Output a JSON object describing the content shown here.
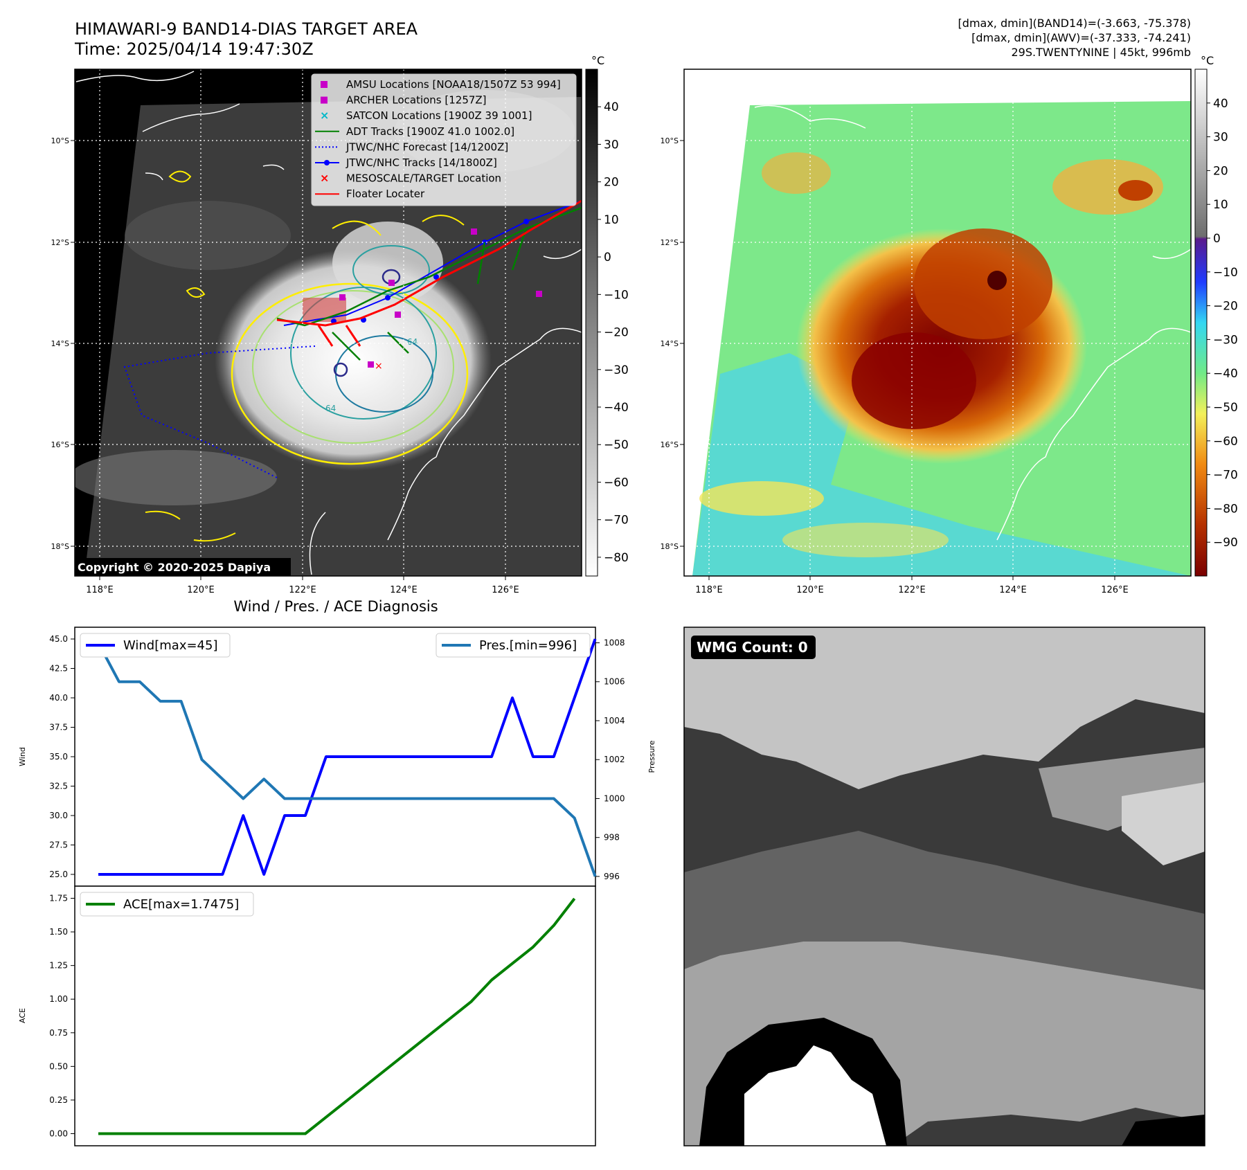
{
  "header": {
    "title_line1": "HIMAWARI-9 BAND14-DIAS TARGET AREA",
    "title_line2": "Time: 2025/04/14 19:47:30Z",
    "info_line1": "[dmax, dmin](BAND14)=(-3.663, -75.378)",
    "info_line2": "[dmax, dmin](AWV)=(-37.333, -74.241)",
    "info_line3": "29S.TWENTYNINE | 45kt, 996mb"
  },
  "map": {
    "lon_ticks": [
      "118°E",
      "120°E",
      "122°E",
      "124°E",
      "126°E"
    ],
    "lat_ticks": [
      "10°S",
      "12°S",
      "14°S",
      "16°S",
      "18°S"
    ],
    "copyright": "Copyright © 2020-2025 Dapiya",
    "contour_labels": [
      "64",
      "64"
    ],
    "legend": [
      {
        "label": "AMSU Locations [NOAA18/1507Z 53 994]",
        "kind": "square",
        "color": "#c800c8"
      },
      {
        "label": "ARCHER Locations [1257Z]",
        "kind": "square",
        "color": "#c800c8"
      },
      {
        "label": "SATCON Locations [1900Z 39 1001]",
        "kind": "x",
        "color": "#00b8c8"
      },
      {
        "label": "ADT Tracks [1900Z 41.0 1002.0]",
        "kind": "line",
        "color": "#008000"
      },
      {
        "label": "JTWC/NHC Forecast [14/1200Z]",
        "kind": "dotted",
        "color": "#0000ff"
      },
      {
        "label": "JTWC/NHC Tracks [14/1800Z]",
        "kind": "line-dot",
        "color": "#0000ff"
      },
      {
        "label": "MESOSCALE/TARGET Location",
        "kind": "x",
        "color": "#ff0000"
      },
      {
        "label": "Floater Locater",
        "kind": "line",
        "color": "#ff0000"
      }
    ]
  },
  "colorbar_gray": {
    "unit": "°C",
    "range": [
      -85,
      50
    ],
    "ticks": [
      40,
      30,
      20,
      10,
      0,
      -10,
      -20,
      -30,
      -40,
      -50,
      -60,
      -70,
      -80
    ],
    "tick_labels": [
      "40",
      "30",
      "20",
      "10",
      "0",
      "−10",
      "−20",
      "−30",
      "−40",
      "−50",
      "−60",
      "−70",
      "−80"
    ]
  },
  "colorbar_color": {
    "unit": "°C",
    "range": [
      -100,
      50
    ],
    "ticks": [
      40,
      30,
      20,
      10,
      0,
      -10,
      -20,
      -30,
      -40,
      -50,
      -60,
      -70,
      -80,
      -90
    ],
    "tick_labels": [
      "40",
      "30",
      "20",
      "10",
      "0",
      "−10",
      "−20",
      "−30",
      "−40",
      "−50",
      "−60",
      "−70",
      "−80",
      "−90"
    ]
  },
  "wmg": {
    "label": "WMG Count: 0"
  },
  "chart_data": [
    {
      "type": "line",
      "title": "Wind / Pres. / ACE Diagnosis",
      "ylabel": "Wind",
      "ylim": [
        24.0,
        46.0
      ],
      "yticks": [
        25.0,
        27.5,
        30.0,
        32.5,
        35.0,
        37.5,
        40.0,
        42.5,
        45.0
      ],
      "ytick_labels": [
        "25.0",
        "27.5",
        "30.0",
        "32.5",
        "35.0",
        "37.5",
        "40.0",
        "42.5",
        "45.0"
      ],
      "series": [
        {
          "name": "Wind[max=45]",
          "color": "#0000ff",
          "values": [
            25,
            25,
            25,
            25,
            25,
            25,
            25,
            30,
            25,
            30,
            30,
            35,
            35,
            35,
            35,
            35,
            35,
            35,
            35,
            35,
            40,
            35,
            35,
            40,
            45
          ]
        }
      ],
      "legend": "upper left"
    },
    {
      "type": "line",
      "ylabel": "Pressure",
      "ylim": [
        995.5,
        1008.8
      ],
      "yticks": [
        996,
        998,
        1000,
        1002,
        1004,
        1006,
        1008
      ],
      "ytick_labels": [
        "996",
        "998",
        "1000",
        "1002",
        "1004",
        "1006",
        "1008"
      ],
      "series": [
        {
          "name": "Pres.[min=996]",
          "color": "#1f77b4",
          "values": [
            1008,
            1006,
            1006,
            1005,
            1005,
            1002,
            1001,
            1000,
            1001,
            1000,
            1000,
            1000,
            1000,
            1000,
            1000,
            1000,
            1000,
            1000,
            1000,
            1000,
            1000,
            1000,
            1000,
            999,
            996
          ]
        }
      ],
      "legend": "upper right"
    },
    {
      "type": "line",
      "ylabel": "ACE",
      "ylim": [
        -0.09,
        1.84
      ],
      "yticks": [
        0.0,
        0.25,
        0.5,
        0.75,
        1.0,
        1.25,
        1.5,
        1.75
      ],
      "ytick_labels": [
        "0.00",
        "0.25",
        "0.50",
        "0.75",
        "1.00",
        "1.25",
        "1.50",
        "1.75"
      ],
      "series": [
        {
          "name": "ACE[max=1.7475]",
          "color": "#008000",
          "values": [
            0,
            0,
            0,
            0,
            0,
            0,
            0,
            0,
            0,
            0,
            0,
            0.1225,
            0.245,
            0.3675,
            0.49,
            0.6125,
            0.735,
            0.8575,
            0.98,
            1.1425,
            1.265,
            1.3875,
            1.5475,
            1.7475
          ]
        }
      ],
      "legend": "upper left"
    }
  ]
}
